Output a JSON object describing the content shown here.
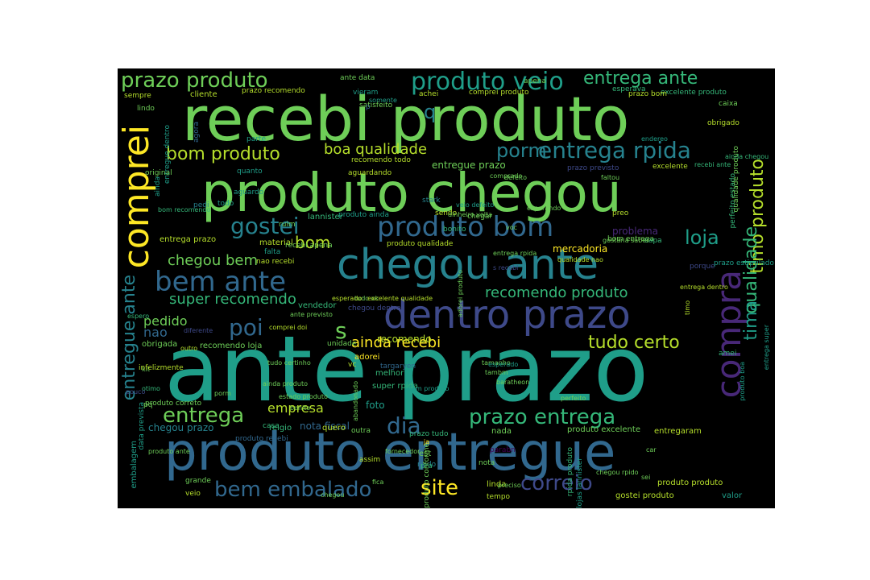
{
  "colors": {
    "background": "#000000",
    "page": "#ffffff",
    "palette": [
      "#fde725",
      "#b5de2b",
      "#6ece58",
      "#35b779",
      "#1f9e89",
      "#26828e",
      "#31688e",
      "#3e4989",
      "#482878",
      "#440154"
    ]
  },
  "words": [
    {
      "text": "ante prazo",
      "color": 4,
      "vertical": false
    },
    {
      "text": "recebi produto",
      "color": 2,
      "vertical": false
    },
    {
      "text": "produto chegou",
      "color": 2,
      "vertical": false
    },
    {
      "text": "produto entregue",
      "color": 6,
      "vertical": false
    },
    {
      "text": "chegou ante",
      "color": 5,
      "vertical": false
    },
    {
      "text": "dentro prazo",
      "color": 7,
      "vertical": false
    },
    {
      "text": "comprei",
      "color": 0,
      "vertical": true
    },
    {
      "text": "compra",
      "color": 8,
      "vertical": true
    },
    {
      "text": "bem ante",
      "color": 6,
      "vertical": false
    },
    {
      "text": "produto bom",
      "color": 6,
      "vertical": false
    },
    {
      "text": "prazo produto",
      "color": 2,
      "vertical": false
    },
    {
      "text": "produto veio",
      "color": 4,
      "vertical": false
    },
    {
      "text": "entrega ante",
      "color": 3,
      "vertical": false
    },
    {
      "text": "entrega rpida",
      "color": 5,
      "vertical": false
    },
    {
      "text": "bem embalado",
      "color": 6,
      "vertical": false
    },
    {
      "text": "prazo entrega",
      "color": 3,
      "vertical": false
    },
    {
      "text": "entregue ante",
      "color": 5,
      "vertical": true
    },
    {
      "text": "timo produto",
      "color": 1,
      "vertical": true
    },
    {
      "text": "qualidade",
      "color": 3,
      "vertical": true
    },
    {
      "text": "tima",
      "color": 4,
      "vertical": true
    },
    {
      "text": "correio",
      "color": 7,
      "vertical": false
    },
    {
      "text": "site",
      "color": 0,
      "vertical": false
    },
    {
      "text": "entrega",
      "color": 2,
      "vertical": false
    },
    {
      "text": "gostei",
      "color": 5,
      "vertical": false
    },
    {
      "text": "poi",
      "color": 6,
      "vertical": false
    },
    {
      "text": "s",
      "color": 2,
      "vertical": false
    },
    {
      "text": "dia",
      "color": 6,
      "vertical": false
    },
    {
      "text": "loja",
      "color": 4,
      "vertical": false
    },
    {
      "text": "porm",
      "color": 5,
      "vertical": false
    },
    {
      "text": "bom produto",
      "color": 1,
      "vertical": false
    },
    {
      "text": "boa qualidade",
      "color": 1,
      "vertical": false
    },
    {
      "text": "chegou bem",
      "color": 2,
      "vertical": false
    },
    {
      "text": "super recomendo",
      "color": 3,
      "vertical": false
    },
    {
      "text": "recomendo produto",
      "color": 3,
      "vertical": false
    },
    {
      "text": "tudo certo",
      "color": 1,
      "vertical": false
    },
    {
      "text": "ainda recebi",
      "color": 0,
      "vertical": false
    },
    {
      "text": "pedido",
      "color": 2,
      "vertical": false
    },
    {
      "text": "nao",
      "color": 6,
      "vertical": false
    },
    {
      "text": "empresa",
      "color": 1,
      "vertical": false
    },
    {
      "text": "q",
      "color": 5,
      "vertical": false
    },
    {
      "text": "bom",
      "color": 1,
      "vertical": false
    },
    {
      "text": "entregue prazo",
      "color": 2,
      "vertical": false
    },
    {
      "text": "entrega prazo",
      "color": 1,
      "vertical": false
    },
    {
      "text": "lannister",
      "color": 3,
      "vertical": false
    },
    {
      "text": "material",
      "color": 1,
      "vertical": false
    },
    {
      "text": "problema",
      "color": 8,
      "vertical": false
    },
    {
      "text": "mercadoria",
      "color": 0,
      "vertical": false
    },
    {
      "text": "recomendo",
      "color": 1,
      "vertical": false
    },
    {
      "text": "vendedor",
      "color": 3,
      "vertical": false
    },
    {
      "text": "obrigada",
      "color": 2,
      "vertical": false
    },
    {
      "text": "recomendo loja",
      "color": 2,
      "vertical": false
    },
    {
      "text": "adorei",
      "color": 0,
      "vertical": false
    },
    {
      "text": "melhor",
      "color": 3,
      "vertical": false
    },
    {
      "text": "super rpida",
      "color": 3,
      "vertical": false
    },
    {
      "text": "foto",
      "color": 4,
      "vertical": false
    },
    {
      "text": "nota fiscal",
      "color": 6,
      "vertical": false
    },
    {
      "text": "relgio",
      "color": 3,
      "vertical": false
    },
    {
      "text": "quero",
      "color": 1,
      "vertical": false
    },
    {
      "text": "chegou prazo",
      "color": 5,
      "vertical": false
    },
    {
      "text": "produto recebi",
      "color": 6,
      "vertical": false
    },
    {
      "text": "prazo tudo",
      "color": 3,
      "vertical": false
    },
    {
      "text": "nada",
      "color": 2,
      "vertical": false
    },
    {
      "text": "produto excelente",
      "color": 2,
      "vertical": false
    },
    {
      "text": "entregaram",
      "color": 1,
      "vertical": false
    },
    {
      "text": "est",
      "color": 2,
      "vertical": false
    },
    {
      "text": "rpido",
      "color": 5,
      "vertical": false
    },
    {
      "text": "linda",
      "color": 1,
      "vertical": false
    },
    {
      "text": "tempo",
      "color": 1,
      "vertical": false
    },
    {
      "text": "gostei produto",
      "color": 1,
      "vertical": false
    },
    {
      "text": "produto produto",
      "color": 1,
      "vertical": false
    },
    {
      "text": "valor",
      "color": 4,
      "vertical": false
    },
    {
      "text": "grande",
      "color": 2,
      "vertical": false
    },
    {
      "text": "veio",
      "color": 1,
      "vertical": false
    },
    {
      "text": "embalagem",
      "color": 4,
      "vertical": true
    },
    {
      "text": "data prevista",
      "color": 4,
      "vertical": true
    },
    {
      "text": "ante data",
      "color": 2,
      "vertical": false
    },
    {
      "text": "cliente",
      "color": 1,
      "vertical": false
    },
    {
      "text": "sempre",
      "color": 1,
      "vertical": false
    },
    {
      "text": "lindo",
      "color": 2,
      "vertical": false
    },
    {
      "text": "prazo recomendo",
      "color": 1,
      "vertical": false
    },
    {
      "text": "vieram",
      "color": 4,
      "vertical": false
    },
    {
      "text": "comprei produto",
      "color": 1,
      "vertical": false
    },
    {
      "text": "apena",
      "color": 2,
      "vertical": false
    },
    {
      "text": "esperava",
      "color": 3,
      "vertical": false
    },
    {
      "text": "excelente produto",
      "color": 3,
      "vertical": false
    },
    {
      "text": "prazo bom",
      "color": 1,
      "vertical": false
    },
    {
      "text": "caixa",
      "color": 2,
      "vertical": false
    },
    {
      "text": "obrigado",
      "color": 1,
      "vertical": false
    },
    {
      "text": "satisfeito",
      "color": 2,
      "vertical": false
    },
    {
      "text": "achei",
      "color": 1,
      "vertical": false
    },
    {
      "text": "aguardando",
      "color": 1,
      "vertical": false
    },
    {
      "text": "recomendo todo",
      "color": 1,
      "vertical": false
    },
    {
      "text": "prazo previsto",
      "color": 7,
      "vertical": false
    },
    {
      "text": "excelente",
      "color": 1,
      "vertical": false
    },
    {
      "text": "perfeito estado",
      "color": 3,
      "vertical": true
    },
    {
      "text": "qualidade produto",
      "color": 2,
      "vertical": true
    },
    {
      "text": "preo",
      "color": 1,
      "vertical": false
    },
    {
      "text": "stark",
      "color": 5,
      "vertical": false
    },
    {
      "text": "sendo",
      "color": 1,
      "vertical": false
    },
    {
      "text": "bonito",
      "color": 3,
      "vertical": false
    },
    {
      "text": "produto qualidade",
      "color": 1,
      "vertical": false
    },
    {
      "text": "bom entrega",
      "color": 2,
      "vertical": false
    },
    {
      "text": "capa",
      "color": 3,
      "vertical": false
    },
    {
      "text": "porque",
      "color": 7,
      "vertical": false
    },
    {
      "text": "prazo estipulado",
      "color": 4,
      "vertical": false
    },
    {
      "text": "recebi apena",
      "color": 2,
      "vertical": false
    },
    {
      "text": "nao recebi",
      "color": 1,
      "vertical": false
    },
    {
      "text": "tudo ok",
      "color": 2,
      "vertical": false
    },
    {
      "text": "ante previsto",
      "color": 2,
      "vertical": false
    },
    {
      "text": "comprei doi",
      "color": 1,
      "vertical": false
    },
    {
      "text": "excelente qualidade",
      "color": 1,
      "vertical": false
    },
    {
      "text": "diferente",
      "color": 7,
      "vertical": false
    },
    {
      "text": "outro",
      "color": 1,
      "vertical": false
    },
    {
      "text": "tudo certinho",
      "color": 2,
      "vertical": false
    },
    {
      "text": "tamanho",
      "color": 2,
      "vertical": false
    },
    {
      "text": "baratheon",
      "color": 2,
      "vertical": false
    },
    {
      "text": "tambm",
      "color": 2,
      "vertical": false
    },
    {
      "text": "kit",
      "color": 2,
      "vertical": false
    },
    {
      "text": "otimo",
      "color": 3,
      "vertical": false
    },
    {
      "text": "pq",
      "color": 2,
      "vertical": false
    },
    {
      "text": "amei",
      "color": 3,
      "vertical": false
    },
    {
      "text": "vc",
      "color": 1,
      "vertical": false
    },
    {
      "text": "casa",
      "color": 3,
      "vertical": false
    },
    {
      "text": "pra",
      "color": 3,
      "vertical": false
    },
    {
      "text": "outra",
      "color": 2,
      "vertical": false
    },
    {
      "text": "nota",
      "color": 2,
      "vertical": false
    },
    {
      "text": "parabn",
      "color": 9,
      "vertical": false
    },
    {
      "text": "assim",
      "color": 1,
      "vertical": false
    },
    {
      "text": "produto conforme",
      "color": 2,
      "vertical": true
    },
    {
      "text": "lojas lannister",
      "color": 4,
      "vertical": true
    },
    {
      "text": "rpida produto",
      "color": 3,
      "vertical": true
    },
    {
      "text": "entrega super",
      "color": 4,
      "vertical": true
    },
    {
      "text": "produto boa",
      "color": 4,
      "vertical": true
    },
    {
      "text": "timo",
      "color": 1,
      "vertical": true
    },
    {
      "text": "ainda",
      "color": 4,
      "vertical": true
    },
    {
      "text": "entregue dentro",
      "color": 4,
      "vertical": true
    },
    {
      "text": "agora",
      "color": 6,
      "vertical": true
    },
    {
      "text": "pedi",
      "color": 5,
      "vertical": false
    },
    {
      "text": "parte",
      "color": 4,
      "vertical": false
    },
    {
      "text": "produto ainda",
      "color": 4,
      "vertical": false
    },
    {
      "text": "ja",
      "color": 0,
      "vertical": false
    },
    {
      "text": "quanto",
      "color": 4,
      "vertical": false
    },
    {
      "text": "aguardo",
      "color": 4,
      "vertical": false
    },
    {
      "text": "todo",
      "color": 4,
      "vertical": false
    },
    {
      "text": "ruim",
      "color": 2,
      "vertical": false
    },
    {
      "text": "p",
      "color": 6,
      "vertical": false
    },
    {
      "text": "espero",
      "color": 3,
      "vertical": false
    },
    {
      "text": "falta",
      "color": 4,
      "vertical": false
    },
    {
      "text": "infelizmente",
      "color": 1,
      "vertical": false
    },
    {
      "text": "pouco",
      "color": 7,
      "vertical": false
    },
    {
      "text": "produto correto",
      "color": 2,
      "vertical": false
    },
    {
      "text": "produto ante",
      "color": 2,
      "vertical": false
    },
    {
      "text": "bom recomendo",
      "color": 3,
      "vertical": false
    },
    {
      "text": "esperado",
      "color": 1,
      "vertical": false
    },
    {
      "text": "targaryen",
      "color": 6,
      "vertical": false
    },
    {
      "text": "fornecedor",
      "color": 2,
      "vertical": false
    },
    {
      "text": "gostaria saber",
      "color": 2,
      "vertical": false
    },
    {
      "text": "chegar",
      "color": 2,
      "vertical": false
    },
    {
      "text": "somente",
      "color": 4,
      "vertical": false
    },
    {
      "text": "chegou dentro",
      "color": 7,
      "vertical": false
    },
    {
      "text": "unidade",
      "color": 2,
      "vertical": false
    },
    {
      "text": "preciso",
      "color": 2,
      "vertical": false
    },
    {
      "text": "fica",
      "color": 2,
      "vertical": false
    },
    {
      "text": "chegou rpido",
      "color": 2,
      "vertical": false
    },
    {
      "text": "sei",
      "color": 2,
      "vertical": false
    },
    {
      "text": "car",
      "color": 2,
      "vertical": false
    },
    {
      "text": "endereo",
      "color": 4,
      "vertical": false
    },
    {
      "text": "recebi ante",
      "color": 3,
      "vertical": false
    },
    {
      "text": "ainda chegou",
      "color": 3,
      "vertical": false
    },
    {
      "text": "esperando",
      "color": 2,
      "vertical": false
    },
    {
      "text": "qualidade nao",
      "color": 1,
      "vertical": false
    },
    {
      "text": "entrega dentro",
      "color": 1,
      "vertical": false
    },
    {
      "text": "veio defeito",
      "color": 4,
      "vertical": false
    },
    {
      "text": "adorei produto",
      "color": 2,
      "vertical": true
    },
    {
      "text": "s recebi",
      "color": 7,
      "vertical": false
    },
    {
      "text": "voc",
      "color": 2,
      "vertical": false
    },
    {
      "text": "faltou",
      "color": 2,
      "vertical": false
    },
    {
      "text": "comprado",
      "color": 2,
      "vertical": false
    },
    {
      "text": "original",
      "color": 2,
      "vertical": false
    },
    {
      "text": "defeito",
      "color": 2,
      "vertical": false
    },
    {
      "text": "entrega rpida",
      "color": 2,
      "vertical": false
    },
    {
      "text": "dinheiro volta",
      "color": 2,
      "vertical": false
    },
    {
      "text": "bom produto",
      "color": 4,
      "vertical": false
    },
    {
      "text": "ainda produto",
      "color": 2,
      "vertical": false
    },
    {
      "text": "esperado",
      "color": 4,
      "vertical": false
    },
    {
      "text": "perfeito",
      "color": 2,
      "vertical": false
    },
    {
      "text": "estado produto",
      "color": 2,
      "vertical": false
    },
    {
      "text": "porm",
      "color": 2,
      "vertical": false
    },
    {
      "text": "bonito",
      "color": 2,
      "vertical": false
    },
    {
      "text": "chegou",
      "color": 2,
      "vertical": false
    },
    {
      "text": "abandonado",
      "color": 2,
      "vertical": true
    }
  ]
}
